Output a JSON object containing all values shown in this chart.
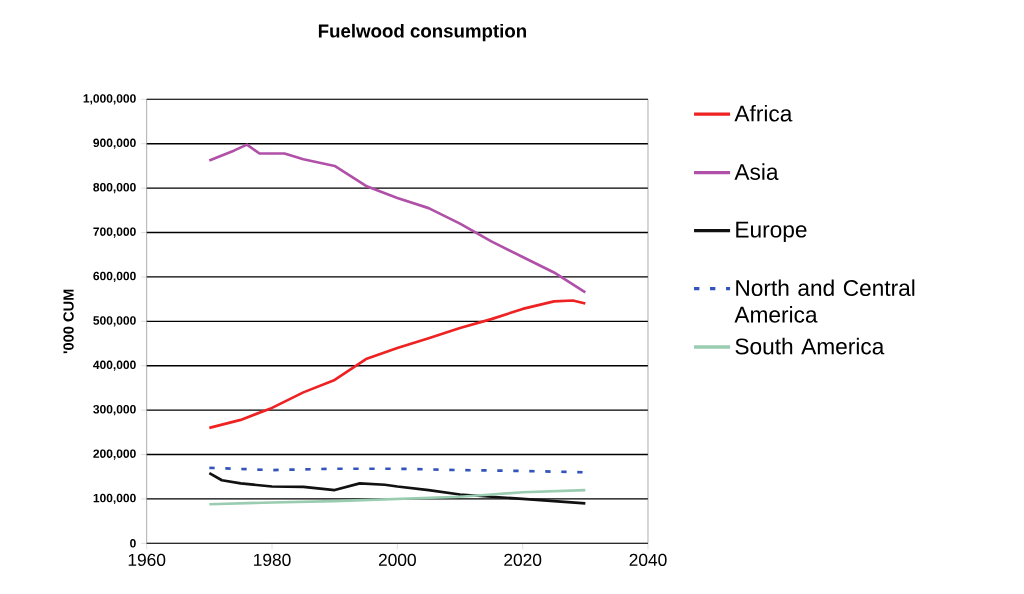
{
  "chart_data": {
    "type": "line",
    "title": "Fuelwood consumption",
    "ylabel": "'000 CUM",
    "xlim": [
      1960,
      2040
    ],
    "xticks": [
      1960,
      1980,
      2000,
      2020,
      2040
    ],
    "ylim": [
      0,
      1000000
    ],
    "yticks": [
      {
        "value": 0,
        "label": "0"
      },
      {
        "value": 100000,
        "label": "100,000"
      },
      {
        "value": 200000,
        "label": "200,000"
      },
      {
        "value": 300000,
        "label": "300,000"
      },
      {
        "value": 400000,
        "label": "400,000"
      },
      {
        "value": 500000,
        "label": "500,000"
      },
      {
        "value": 600000,
        "label": "600,000"
      },
      {
        "value": 700000,
        "label": "700,000"
      },
      {
        "value": 800000,
        "label": "800,000"
      },
      {
        "value": 900000,
        "label": "900,000"
      },
      {
        "value": 1000000,
        "label": "1,000,000"
      }
    ],
    "grid": "y",
    "legend": "right",
    "marker": "none",
    "series": [
      {
        "name": "Africa",
        "color": "#ee2222",
        "x": [
          1970,
          1975,
          1980,
          1985,
          1990,
          1995,
          2000,
          2005,
          2010,
          2015,
          2020,
          2025,
          2028,
          2030
        ],
        "values": [
          260000,
          278000,
          305000,
          340000,
          368000,
          415000,
          440000,
          462000,
          485000,
          505000,
          528000,
          545000,
          547000,
          540000
        ]
      },
      {
        "name": "Asia",
        "color": "#b050a8",
        "x": [
          1970,
          1974,
          1976,
          1978,
          1982,
          1985,
          1990,
          1995,
          2000,
          2005,
          2010,
          2015,
          2020,
          2025,
          2030
        ],
        "values": [
          862000,
          885000,
          898000,
          878000,
          878000,
          865000,
          850000,
          805000,
          778000,
          755000,
          720000,
          680000,
          645000,
          610000,
          565000
        ]
      },
      {
        "name": "Europe",
        "color": "#111111",
        "x": [
          1970,
          1972,
          1975,
          1980,
          1985,
          1990,
          1994,
          1998,
          2000,
          2005,
          2010,
          2015,
          2020,
          2025,
          2030
        ],
        "values": [
          158000,
          142000,
          135000,
          128000,
          127000,
          120000,
          135000,
          132000,
          128000,
          120000,
          110000,
          105000,
          100000,
          95000,
          90000
        ]
      },
      {
        "name": "North and Central America",
        "color": "#3355bb",
        "line_style": "dashed",
        "x": [
          1970,
          1980,
          1990,
          2000,
          2010,
          2020,
          2030
        ],
        "values": [
          170000,
          165000,
          168000,
          168000,
          165000,
          163000,
          160000
        ]
      },
      {
        "name": "South America",
        "color": "#99ccb0",
        "x": [
          1970,
          1980,
          1990,
          2000,
          2010,
          2015,
          2020,
          2030
        ],
        "values": [
          88000,
          92000,
          95000,
          100000,
          105000,
          110000,
          115000,
          120000
        ]
      }
    ]
  }
}
